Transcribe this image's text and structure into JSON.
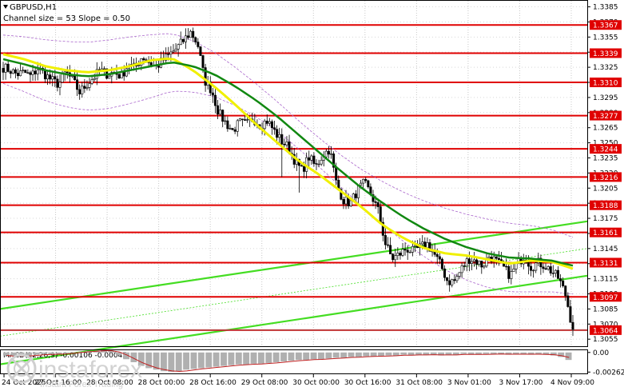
{
  "chart_data": {
    "type": "candlestick",
    "symbol": "GBPUSD,H1",
    "channel_note": "Channel size = 53 Slope = 0.50",
    "ylim": [
      1.3048,
      1.3391
    ],
    "y_ticks": [
      "1.3385",
      "1.3370",
      "1.3355",
      "1.3340",
      "1.3325",
      "1.3310",
      "1.3295",
      "1.3280",
      "1.3265",
      "1.3250",
      "1.3235",
      "1.3220",
      "1.3205",
      "1.3190",
      "1.3175",
      "1.3160",
      "1.3145",
      "1.3130",
      "1.3115",
      "1.3100",
      "1.3085",
      "1.3070",
      "1.3055"
    ],
    "levels": [
      {
        "label": "1.3367",
        "value": 1.3367
      },
      {
        "label": "1.3339",
        "value": 1.3339
      },
      {
        "label": "1.3310",
        "value": 1.331
      },
      {
        "label": "1.3277",
        "value": 1.3277
      },
      {
        "label": "1.3244",
        "value": 1.3244
      },
      {
        "label": "1.3216",
        "value": 1.3216
      },
      {
        "label": "1.3188",
        "value": 1.3188
      },
      {
        "label": "1.3161",
        "value": 1.3161
      },
      {
        "label": "1.3131",
        "value": 1.3131
      },
      {
        "label": "1.3097",
        "value": 1.3097
      },
      {
        "label": "1.3064",
        "value": 1.3064
      }
    ],
    "x_labels": [
      "24 Oct 2025",
      "27 Oct 16:00",
      "28 Oct 08:00",
      "28 Oct 00:00",
      "28 Oct 16:00",
      "29 Oct 08:00",
      "30 Oct 00:00",
      "30 Oct 16:00",
      "31 Oct 08:00",
      "3 Nov 01:00",
      "3 Nov 17:00",
      "4 Nov 09:00"
    ],
    "price_path": [
      1.3325,
      1.3322,
      1.3318,
      1.332,
      1.3316,
      1.3324,
      1.3318,
      1.3312,
      1.3308,
      1.332,
      1.3312,
      1.33,
      1.3308,
      1.3315,
      1.3322,
      1.3318,
      1.332,
      1.3316,
      1.3328,
      1.3324,
      1.3336,
      1.333,
      1.3325,
      1.3332,
      1.3338,
      1.3344,
      1.3352,
      1.336,
      1.3348,
      1.3312,
      1.3302,
      1.328,
      1.327,
      1.3262,
      1.327,
      1.3268,
      1.3274,
      1.3268,
      1.3272,
      1.3262,
      1.3252,
      1.3246,
      1.3232,
      1.3222,
      1.3236,
      1.3226,
      1.3238,
      1.3244,
      1.3208,
      1.3193,
      1.319,
      1.3203,
      1.321,
      1.3198,
      1.3182,
      1.315,
      1.3135,
      1.3139,
      1.3145,
      1.3142,
      1.3146,
      1.315,
      1.314,
      1.3128,
      1.3112,
      1.3113,
      1.3125,
      1.3135,
      1.3133,
      1.3128,
      1.3138,
      1.3132,
      1.3126,
      1.3118,
      1.313,
      1.3138,
      1.3127,
      1.3131,
      1.3128,
      1.3122,
      1.3115,
      1.3098,
      1.3064
    ],
    "ma_slow": [
      1.3333,
      1.3328,
      1.3322,
      1.3318,
      1.3316,
      1.3318,
      1.3322,
      1.3326,
      1.333,
      1.3326,
      1.3318,
      1.3306,
      1.3292,
      1.3276,
      1.3258,
      1.324,
      1.3222,
      1.3205,
      1.319,
      1.3176,
      1.3164,
      1.3154,
      1.3146,
      1.314,
      1.3136,
      1.3135,
      1.3133,
      1.3128
    ],
    "ma_fast": [
      1.3338,
      1.3333,
      1.3326,
      1.3322,
      1.332,
      1.3322,
      1.3326,
      1.3332,
      1.3334,
      1.3322,
      1.3306,
      1.3288,
      1.3268,
      1.325,
      1.3232,
      1.3218,
      1.3202,
      1.3186,
      1.3168,
      1.3155,
      1.3145,
      1.314,
      1.3138,
      1.3134,
      1.313,
      1.3133,
      1.3132,
      1.3125
    ],
    "macd": {
      "label": "MACD(12,26,9) -0.00106 -0.00045",
      "ylim": [
        -0.0028,
        0.0003
      ],
      "y_ticks": [
        "0.00",
        "-0.00262"
      ],
      "histogram": [
        -0.0004,
        -0.0005,
        -0.0005,
        -0.0004,
        -0.0003,
        -0.0002,
        -0.0003,
        -0.0002,
        -0.0001,
        0.0,
        0.0001,
        0.0002,
        0.0002,
        0.0003,
        0.0002,
        -0.0003,
        -0.0009,
        -0.0013,
        -0.0018,
        -0.0021,
        -0.0023,
        -0.0025,
        -0.0026,
        -0.0025,
        -0.0023,
        -0.0022,
        -0.0021,
        -0.002,
        -0.0019,
        -0.0018,
        -0.0017,
        -0.0016,
        -0.0016,
        -0.0015,
        -0.0015,
        -0.0014,
        -0.0013,
        -0.0012,
        -0.0011,
        -0.001,
        -0.001,
        -0.0009,
        -0.0009,
        -0.0008,
        -0.0007,
        -0.0007,
        -0.0006,
        -0.0006,
        -0.0005,
        -0.0005,
        -0.0005,
        -0.0004,
        -0.0004,
        -0.0003,
        -0.0004,
        -0.0003,
        -0.0003,
        -0.0003,
        -0.0004,
        -0.0003,
        -0.0003,
        -0.0002,
        -0.0003,
        -0.0003,
        -0.0002,
        -0.0002,
        -0.0002,
        -0.0003,
        -0.0002,
        -0.0002,
        -0.0003,
        -0.0002,
        -0.0003,
        -0.0004,
        -0.0006,
        -0.001
      ]
    }
  },
  "watermark": {
    "brand": "instaforex",
    "tagline": "Instant Forex Trading"
  },
  "colors": {
    "level": "#e00000",
    "ma_slow": "#118811",
    "ma_fast": "#f0f000",
    "channel": "#44dd22",
    "envelope": "#aa66cc",
    "macd_signal": "#c02020",
    "macd_hist": "#b0b0b0",
    "watermark": "#d8d8d8"
  }
}
